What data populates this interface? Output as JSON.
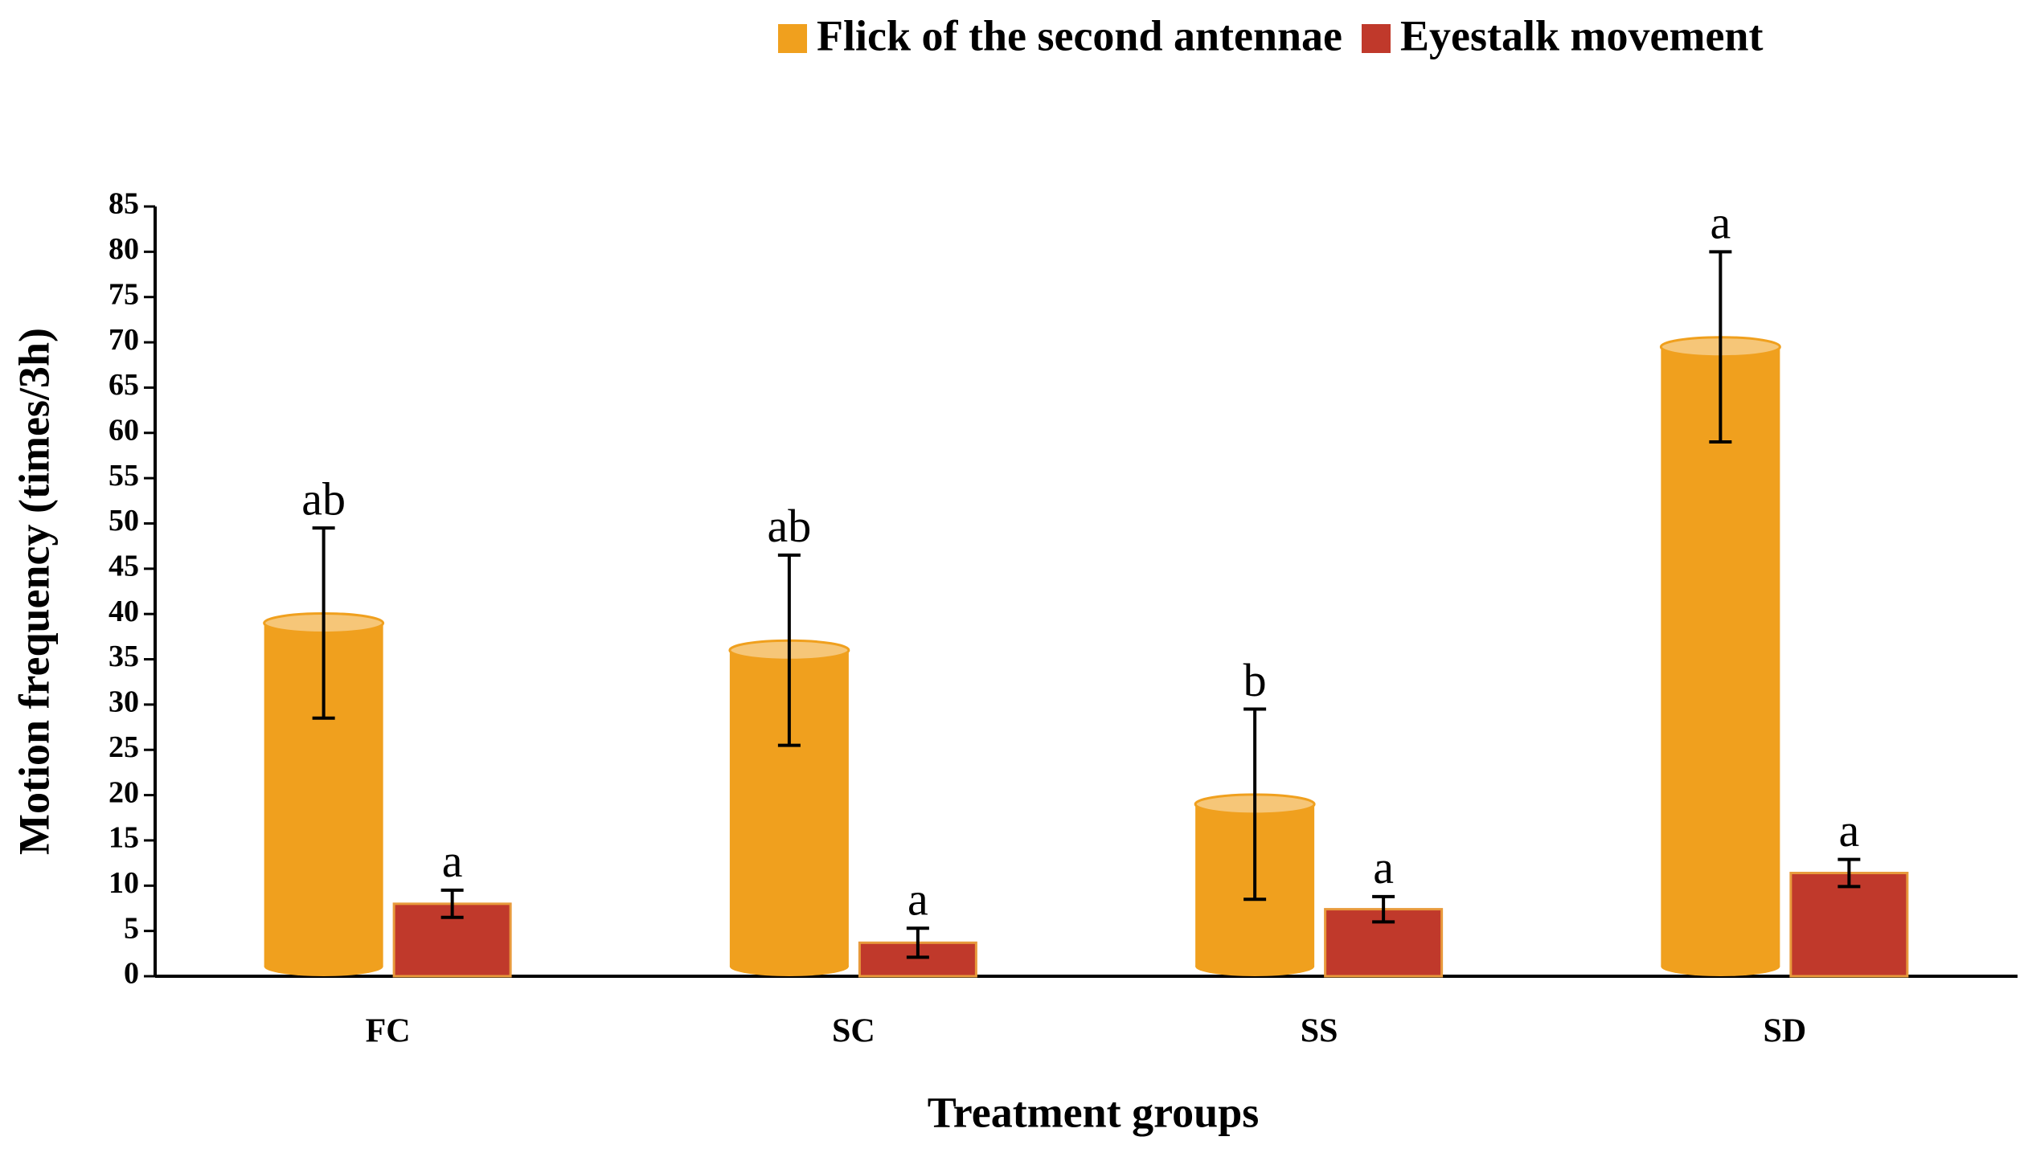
{
  "chart_data": {
    "type": "bar",
    "x_label": "Treatment groups",
    "y_label": "Motion frequency (times/3h)",
    "categories": [
      "FC",
      "SC",
      "SS",
      "SD"
    ],
    "series": [
      {
        "name": "Flick of the second antennae",
        "color": "#f0a01e",
        "values": [
          39,
          36,
          19,
          69.5
        ],
        "errors": [
          10.5,
          10.5,
          10.5,
          10.5
        ],
        "letters": [
          "ab",
          "ab",
          "b",
          "a"
        ]
      },
      {
        "name": "Eyestalk movement",
        "color": "#c0392b",
        "values": [
          8,
          3.7,
          7.4,
          11.4
        ],
        "errors": [
          1.5,
          1.6,
          1.4,
          1.5
        ],
        "letters": [
          "a",
          "a",
          "a",
          "a"
        ]
      }
    ],
    "ylim": [
      0,
      85
    ],
    "yticks": [
      0,
      5,
      10,
      15,
      20,
      25,
      30,
      35,
      40,
      45,
      50,
      55,
      60,
      65,
      70,
      75,
      80,
      85
    ],
    "grid": false,
    "legend": "top-right"
  }
}
